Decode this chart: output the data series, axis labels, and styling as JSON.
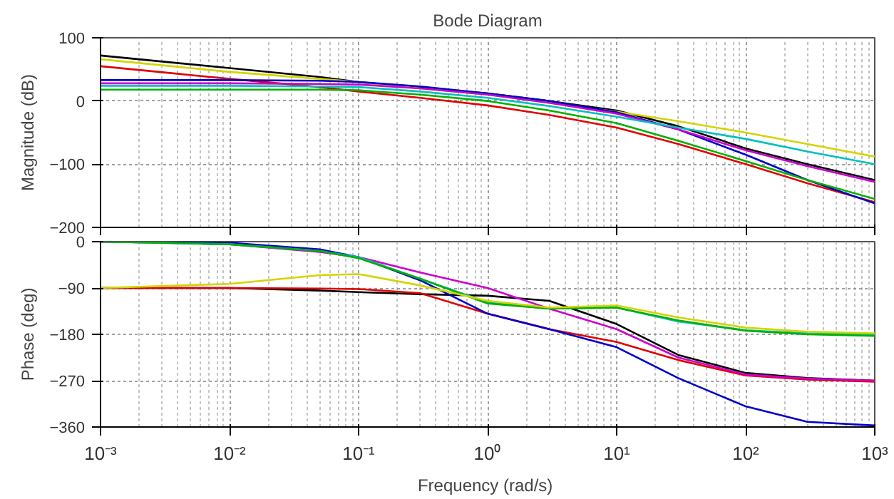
{
  "chart_data": [
    {
      "type": "line",
      "title": "Bode Diagram",
      "ylabel": "Magnitude (dB)",
      "log": "x",
      "grid": true,
      "tick_labels": "y",
      "xlim": [
        0.001,
        1000
      ],
      "xticks": [
        {
          "value": 0.001,
          "label": null
        },
        {
          "value": 0.01,
          "label": null
        },
        {
          "value": 0.1,
          "label": null
        },
        {
          "value": 1,
          "label": null
        },
        {
          "value": 10,
          "label": null
        },
        {
          "value": 100,
          "label": null
        },
        {
          "value": 1000,
          "label": null
        }
      ],
      "ylim": [
        -200,
        100
      ],
      "yticks": [
        -200,
        -100,
        0,
        100
      ],
      "x": [
        0.001,
        0.01,
        0.05,
        0.1,
        0.3,
        1,
        3,
        10,
        30,
        100,
        300,
        1000
      ],
      "series": [
        {
          "color": "#000000",
          "values": [
            72,
            52,
            38,
            30,
            21,
            12,
            0,
            -15,
            -40,
            -75,
            -100,
            -125
          ]
        },
        {
          "color": "#d4d400",
          "values": [
            66,
            46,
            35,
            30,
            20,
            10,
            -3,
            -17,
            -32,
            -50,
            -68,
            -88
          ]
        },
        {
          "color": "#e00000",
          "values": [
            55,
            35,
            22,
            15,
            5,
            -7,
            -22,
            -42,
            -68,
            -100,
            -130,
            -160
          ]
        },
        {
          "color": "#0000cc",
          "values": [
            33,
            33,
            32,
            30,
            23,
            12,
            0,
            -18,
            -45,
            -85,
            -125,
            -162
          ]
        },
        {
          "color": "#cc00cc",
          "values": [
            28,
            28,
            27,
            26,
            20,
            10,
            -3,
            -20,
            -45,
            -78,
            -103,
            -128
          ]
        },
        {
          "color": "#00c0c0",
          "values": [
            24,
            24,
            23,
            22,
            15,
            5,
            -8,
            -25,
            -42,
            -60,
            -80,
            -100
          ]
        },
        {
          "color": "#00b000",
          "values": [
            18,
            18,
            18,
            17,
            10,
            0,
            -15,
            -35,
            -63,
            -95,
            -125,
            -155
          ]
        }
      ]
    },
    {
      "type": "line",
      "xlabel": "Frequency  (rad/s)",
      "ylabel": "Phase (deg)",
      "log": "x",
      "grid": true,
      "xlim": [
        0.001,
        1000
      ],
      "xticks": [
        {
          "value": 0.001,
          "label": "10⁻³"
        },
        {
          "value": 0.01,
          "label": "10⁻²"
        },
        {
          "value": 0.1,
          "label": "10⁻¹"
        },
        {
          "value": 1,
          "label": "10⁰"
        },
        {
          "value": 10,
          "label": "10¹"
        },
        {
          "value": 100,
          "label": "10²"
        },
        {
          "value": 1000,
          "label": "10³"
        }
      ],
      "ylim": [
        -360,
        0
      ],
      "yticks": [
        -360,
        -270,
        -180,
        -90,
        0
      ],
      "x": [
        0.001,
        0.01,
        0.05,
        0.1,
        0.3,
        1,
        3,
        10,
        30,
        100,
        300,
        1000
      ],
      "series": [
        {
          "color": "#000000",
          "values": [
            -90,
            -90,
            -95,
            -98,
            -102,
            -105,
            -115,
            -160,
            -220,
            -255,
            -265,
            -270
          ]
        },
        {
          "color": "#e00000",
          "values": [
            -90,
            -90,
            -91,
            -92,
            -100,
            -140,
            -170,
            -195,
            -230,
            -260,
            -268,
            -272
          ]
        },
        {
          "color": "#0000cc",
          "values": [
            0,
            -2,
            -15,
            -30,
            -75,
            -140,
            -170,
            -205,
            -265,
            -320,
            -350,
            -357
          ]
        },
        {
          "color": "#cc00cc",
          "values": [
            0,
            -5,
            -20,
            -30,
            -60,
            -90,
            -130,
            -170,
            -225,
            -258,
            -266,
            -270
          ]
        },
        {
          "color": "#00c0c0",
          "values": [
            0,
            -5,
            -18,
            -30,
            -72,
            -118,
            -130,
            -128,
            -155,
            -172,
            -178,
            -180
          ]
        },
        {
          "color": "#00b000",
          "values": [
            0,
            -5,
            -18,
            -32,
            -72,
            -120,
            -130,
            -128,
            -153,
            -173,
            -180,
            -183
          ]
        },
        {
          "color": "#d4d400",
          "values": [
            -90,
            -82,
            -65,
            -63,
            -85,
            -115,
            -128,
            -124,
            -147,
            -167,
            -175,
            -178
          ]
        }
      ]
    }
  ]
}
